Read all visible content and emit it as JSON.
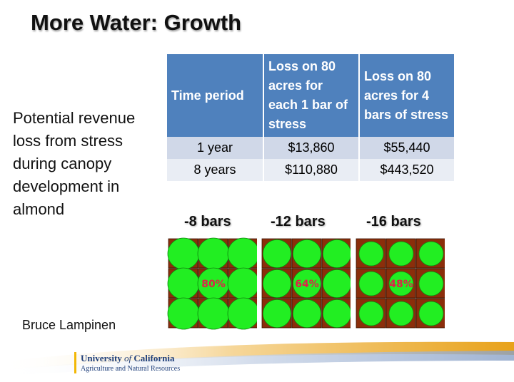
{
  "title": "More Water: Growth",
  "side_text": "Potential revenue loss from stress during canopy development in almond",
  "table": {
    "headers": [
      "Time period",
      "Loss on 80 acres for each 1 bar of stress",
      "Loss on 80 acres for 4 bars of stress"
    ],
    "rows": [
      [
        "1 year",
        "$13,860",
        "$55,440"
      ],
      [
        "8 years",
        "$110,880",
        "$443,520"
      ]
    ]
  },
  "stress_grids": [
    {
      "label": "-8 bars",
      "percent_label": "80%",
      "canopy_fraction": 0.8
    },
    {
      "label": "-12 bars",
      "percent_label": "64%",
      "canopy_fraction": 0.64
    },
    {
      "label": "-16 bars",
      "percent_label": "48%",
      "canopy_fraction": 0.48
    }
  ],
  "colors": {
    "soil": "#8b2e0b",
    "canopy": "#22ee22",
    "header": "#4f81bd",
    "percent": "#e0204a"
  },
  "author": "Bruce Lampinen",
  "logo": {
    "line1_a": "University ",
    "line1_b": "of",
    "line1_c": " California",
    "line2": "Agriculture and Natural Resources"
  }
}
